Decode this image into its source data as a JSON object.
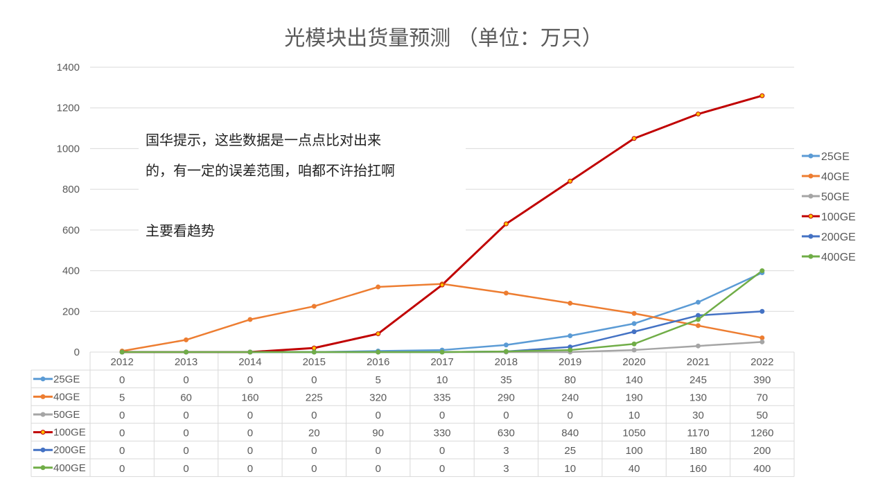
{
  "chart_data": {
    "type": "line",
    "title": "光模块出货量预测 （单位：万只）",
    "categories": [
      "2012",
      "2013",
      "2014",
      "2015",
      "2016",
      "2017",
      "2018",
      "2019",
      "2020",
      "2021",
      "2022"
    ],
    "ylim": [
      0,
      1400
    ],
    "yticks": [
      0,
      200,
      400,
      600,
      800,
      1000,
      1200,
      1400
    ],
    "grid": true,
    "legend_position": "right",
    "data_table": true,
    "series": [
      {
        "name": "25GE",
        "color": "#5B9BD5",
        "values": [
          0,
          0,
          0,
          0,
          5,
          10,
          35,
          80,
          140,
          245,
          390
        ]
      },
      {
        "name": "40GE",
        "color": "#ED7D31",
        "values": [
          5,
          60,
          160,
          225,
          320,
          335,
          290,
          240,
          190,
          130,
          70
        ]
      },
      {
        "name": "50GE",
        "color": "#A5A5A5",
        "values": [
          0,
          0,
          0,
          0,
          0,
          0,
          0,
          0,
          10,
          30,
          50
        ]
      },
      {
        "name": "100GE",
        "color": "#C00000",
        "marker_fill": "#FFC000",
        "values": [
          0,
          0,
          0,
          20,
          90,
          330,
          630,
          840,
          1050,
          1170,
          1260
        ]
      },
      {
        "name": "200GE",
        "color": "#4472C4",
        "values": [
          0,
          0,
          0,
          0,
          0,
          0,
          3,
          25,
          100,
          180,
          200
        ]
      },
      {
        "name": "400GE",
        "color": "#70AD47",
        "values": [
          0,
          0,
          0,
          0,
          0,
          0,
          3,
          10,
          40,
          160,
          400
        ]
      }
    ],
    "annotation": {
      "line1": "国华提示，这些数据是一点点比对出来",
      "line2": "的，有一定的误差范围，咱都不许抬扛啊",
      "line3": "主要看趋势"
    }
  }
}
